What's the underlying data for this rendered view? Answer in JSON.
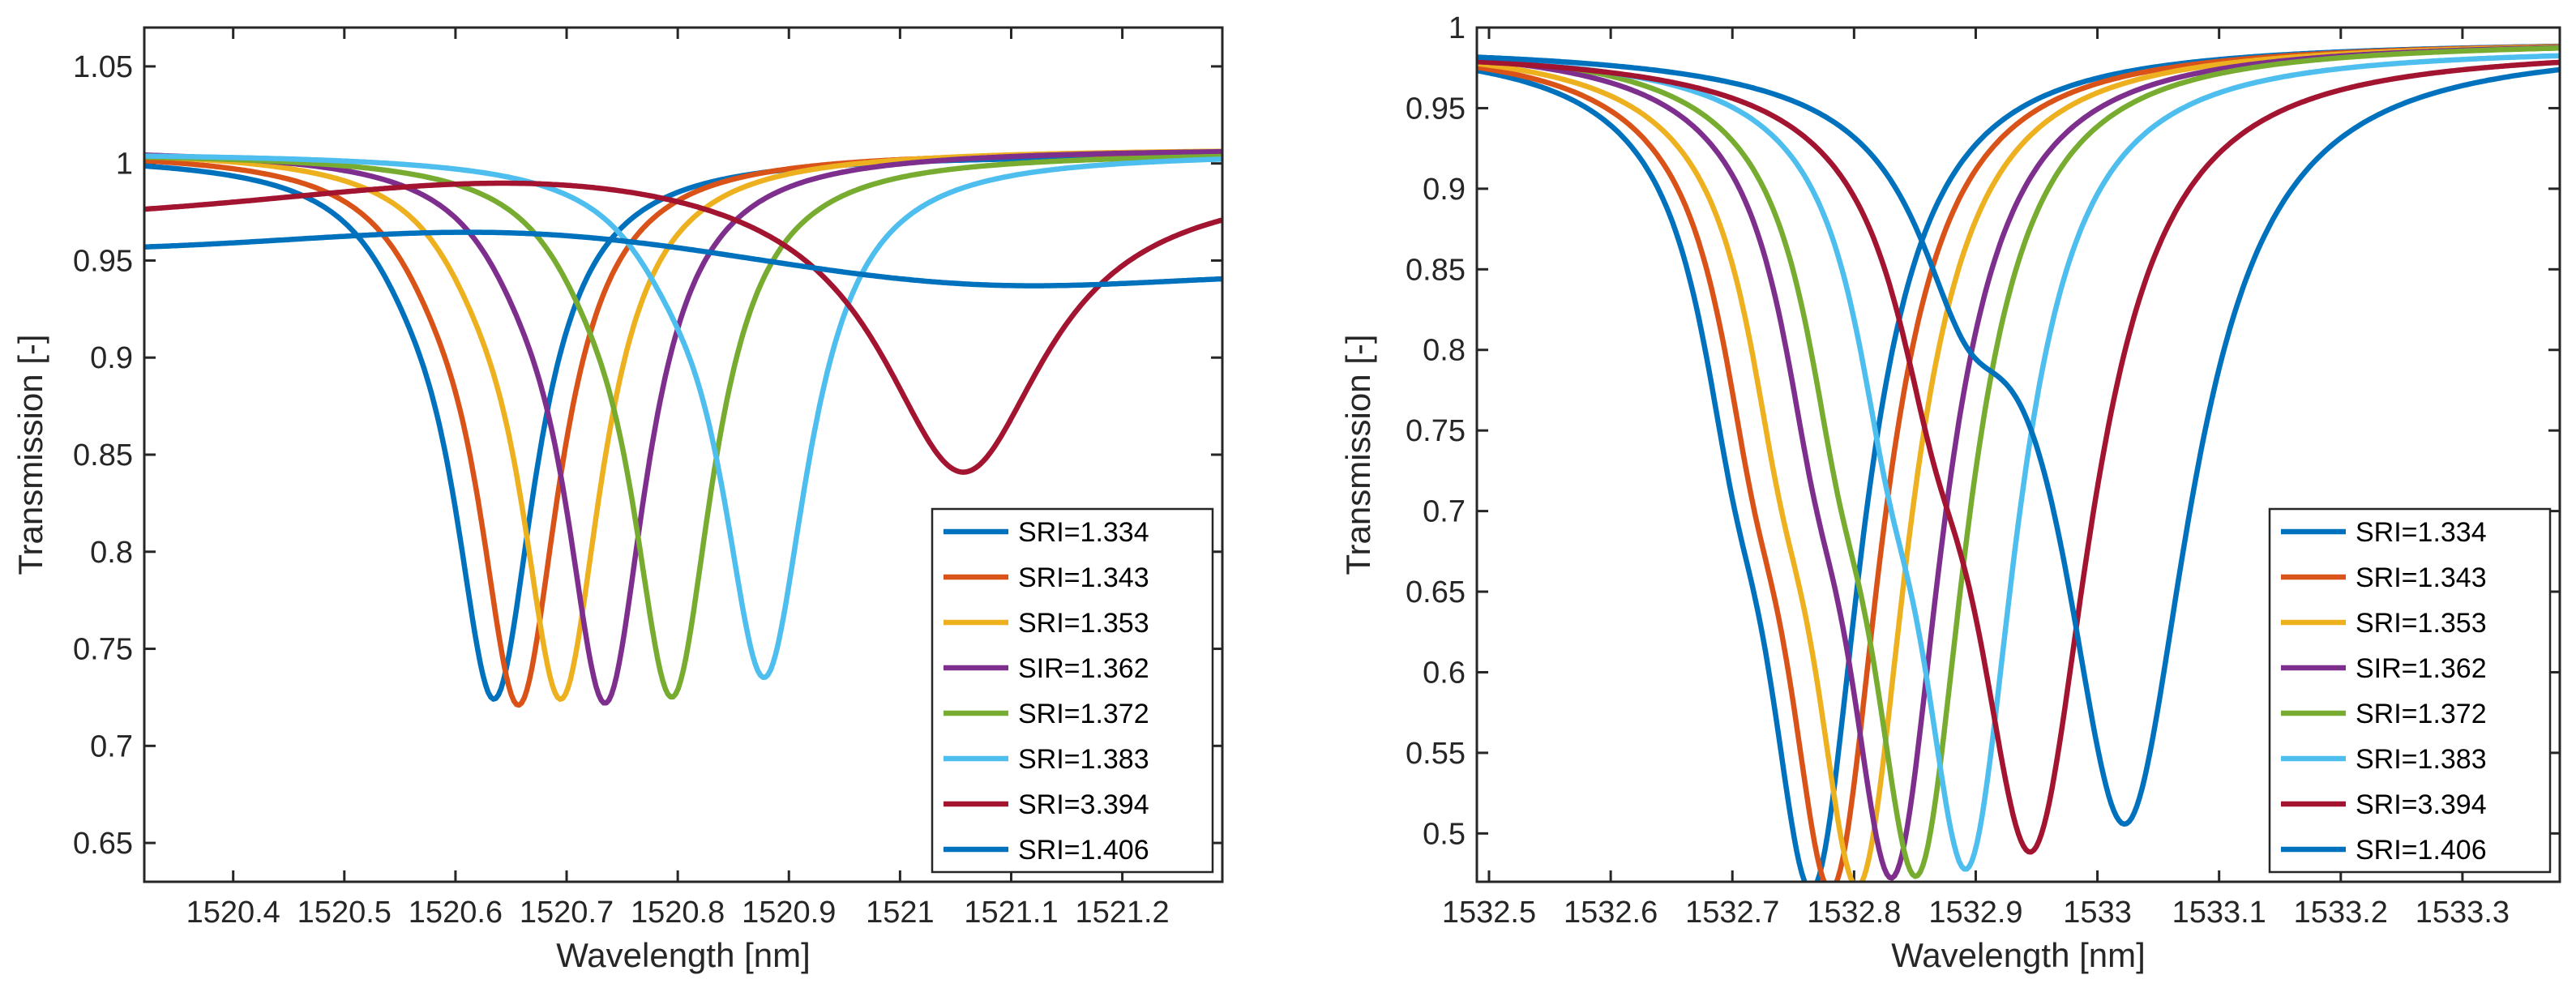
{
  "chart_data": [
    {
      "type": "line",
      "xlabel": "Wavelength [nm]",
      "ylabel": "Transmission [-]",
      "xlim": [
        1520.32,
        1521.29
      ],
      "ylim": [
        0.63,
        1.07
      ],
      "xticks": [
        1520.4,
        1520.5,
        1520.6,
        1520.7,
        1520.8,
        1520.9,
        1521.0,
        1521.1,
        1521.2
      ],
      "xtick_labels": [
        "1520.4",
        "1520.5",
        "1520.6",
        "1520.7",
        "1520.8",
        "1520.9",
        "1521",
        "1521.1",
        "1521.2"
      ],
      "yticks": [
        0.65,
        0.7,
        0.75,
        0.8,
        0.85,
        0.9,
        0.95,
        1.0,
        1.05
      ],
      "ytick_labels": [
        "0.65",
        "0.7",
        "0.75",
        "0.8",
        "0.85",
        "0.9",
        "0.95",
        "1",
        "1.05"
      ],
      "legend_position": "bottom-right",
      "series": [
        {
          "name": "SRI=1.334",
          "color": "#0072BD",
          "dip_center": 1520.635,
          "dip_min": 0.73,
          "dip_width": 0.045,
          "baseline": 1.005,
          "shoulder_depth": 0.07,
          "shoulder_offset": 0.075,
          "shoulder_width": 0.05
        },
        {
          "name": "SRI=1.343",
          "color": "#D95319",
          "dip_center": 1520.657,
          "dip_min": 0.727,
          "dip_width": 0.045,
          "baseline": 1.007,
          "shoulder_depth": 0.07,
          "shoulder_offset": 0.075,
          "shoulder_width": 0.05
        },
        {
          "name": "SRI=1.353",
          "color": "#EDB120",
          "dip_center": 1520.695,
          "dip_min": 0.73,
          "dip_width": 0.045,
          "baseline": 1.008,
          "shoulder_depth": 0.07,
          "shoulder_offset": 0.075,
          "shoulder_width": 0.05
        },
        {
          "name": "SIR=1.362",
          "color": "#7E2F8E",
          "dip_center": 1520.735,
          "dip_min": 0.728,
          "dip_width": 0.045,
          "baseline": 1.008,
          "shoulder_depth": 0.07,
          "shoulder_offset": 0.075,
          "shoulder_width": 0.05
        },
        {
          "name": "SRI=1.372",
          "color": "#77AC30",
          "dip_center": 1520.795,
          "dip_min": 0.731,
          "dip_width": 0.045,
          "baseline": 1.006,
          "shoulder_depth": 0.07,
          "shoulder_offset": 0.075,
          "shoulder_width": 0.05
        },
        {
          "name": "SRI=1.383",
          "color": "#4DBEEE",
          "dip_center": 1520.878,
          "dip_min": 0.74,
          "dip_width": 0.048,
          "baseline": 1.006,
          "shoulder_depth": 0.07,
          "shoulder_offset": 0.085,
          "shoulder_width": 0.05
        },
        {
          "name": "SRI=3.394",
          "color": "#A2142F",
          "dip_center": 1521.057,
          "dip_min": 0.841,
          "dip_width": 0.09,
          "baseline": 0.998,
          "shoulder_depth": 0.0,
          "shoulder_offset": 0.1,
          "shoulder_width": 0.05,
          "start_value": 0.975,
          "end_value": 0.99
        },
        {
          "name": "SRI=1.406",
          "color": "#0072BD",
          "dip_center": 1521.12,
          "dip_min": 0.937,
          "dip_width": 0.25,
          "baseline": 0.972,
          "shoulder_depth": 0.0,
          "shoulder_offset": 0.1,
          "shoulder_width": 0.05,
          "start_value": 0.955,
          "end_value": 0.948
        }
      ]
    },
    {
      "type": "line",
      "xlabel": "Wavelength [nm]",
      "ylabel": "Transmission [-]",
      "xlim": [
        1532.49,
        1533.38
      ],
      "ylim": [
        0.47,
        1.0
      ],
      "xticks": [
        1532.5,
        1532.6,
        1532.7,
        1532.8,
        1532.9,
        1533.0,
        1533.1,
        1533.2,
        1533.3
      ],
      "xtick_labels": [
        "1532.5",
        "1532.6",
        "1532.7",
        "1532.8",
        "1532.9",
        "1533",
        "1533.1",
        "1533.2",
        "1533.3"
      ],
      "yticks": [
        0.5,
        0.55,
        0.6,
        0.65,
        0.7,
        0.75,
        0.8,
        0.85,
        0.9,
        0.95,
        1.0
      ],
      "ytick_labels": [
        "0.5",
        "0.55",
        "0.6",
        "0.65",
        "0.7",
        "0.75",
        "0.8",
        "0.85",
        "0.9",
        "0.95",
        "1"
      ],
      "legend_position": "bottom-right",
      "series": [
        {
          "name": "SRI=1.334",
          "color": "#0072BD",
          "dip_center": 1532.766,
          "dip_min": 0.488,
          "dip_width": 0.05,
          "baseline": 0.992,
          "shoulder_depth": 0.2,
          "shoulder_offset": 0.065,
          "shoulder_width": 0.035
        },
        {
          "name": "SRI=1.343",
          "color": "#D95319",
          "dip_center": 1532.782,
          "dip_min": 0.488,
          "dip_width": 0.05,
          "baseline": 0.992,
          "shoulder_depth": 0.2,
          "shoulder_offset": 0.065,
          "shoulder_width": 0.035
        },
        {
          "name": "SRI=1.353",
          "color": "#EDB120",
          "dip_center": 1532.804,
          "dip_min": 0.49,
          "dip_width": 0.05,
          "baseline": 0.992,
          "shoulder_depth": 0.2,
          "shoulder_offset": 0.065,
          "shoulder_width": 0.035
        },
        {
          "name": "SIR=1.362",
          "color": "#7E2F8E",
          "dip_center": 1532.832,
          "dip_min": 0.495,
          "dip_width": 0.05,
          "baseline": 0.992,
          "shoulder_depth": 0.2,
          "shoulder_offset": 0.065,
          "shoulder_width": 0.035
        },
        {
          "name": "SRI=1.372",
          "color": "#77AC30",
          "dip_center": 1532.852,
          "dip_min": 0.496,
          "dip_width": 0.05,
          "baseline": 0.992,
          "shoulder_depth": 0.2,
          "shoulder_offset": 0.065,
          "shoulder_width": 0.035
        },
        {
          "name": "SRI=1.383",
          "color": "#4DBEEE",
          "dip_center": 1532.893,
          "dip_min": 0.5,
          "dip_width": 0.05,
          "baseline": 0.988,
          "shoulder_depth": 0.2,
          "shoulder_offset": 0.065,
          "shoulder_width": 0.035
        },
        {
          "name": "SRI=3.394",
          "color": "#A2142F",
          "dip_center": 1532.946,
          "dip_min": 0.506,
          "dip_width": 0.06,
          "baseline": 0.988,
          "shoulder_depth": 0.18,
          "shoulder_offset": 0.08,
          "shoulder_width": 0.04
        },
        {
          "name": "SRI=1.406",
          "color": "#0072BD",
          "dip_center": 1533.023,
          "dip_min": 0.518,
          "dip_width": 0.065,
          "baseline": 0.99,
          "shoulder_depth": 0.2,
          "shoulder_offset": 0.13,
          "shoulder_width": 0.05
        }
      ]
    }
  ]
}
